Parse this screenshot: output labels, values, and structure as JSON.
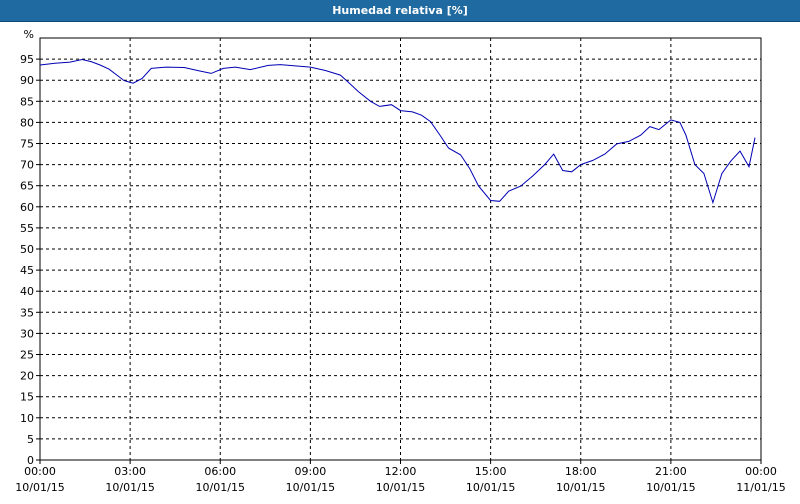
{
  "window": {
    "title": "Humedad relativa [%]"
  },
  "chart_data": {
    "type": "line",
    "title": "Humedad relativa [%]",
    "ylabel": "%",
    "xlabel": "",
    "ylim": [
      0,
      100
    ],
    "y_ticks": [
      0,
      5,
      10,
      15,
      20,
      25,
      30,
      35,
      40,
      45,
      50,
      55,
      60,
      65,
      70,
      75,
      80,
      85,
      90,
      95
    ],
    "xlim": [
      0,
      24
    ],
    "x_ticks": [
      {
        "x": 0,
        "time": "00:00",
        "date": "10/01/15"
      },
      {
        "x": 3,
        "time": "03:00",
        "date": "10/01/15"
      },
      {
        "x": 6,
        "time": "06:00",
        "date": "10/01/15"
      },
      {
        "x": 9,
        "time": "09:00",
        "date": "10/01/15"
      },
      {
        "x": 12,
        "time": "12:00",
        "date": "10/01/15"
      },
      {
        "x": 15,
        "time": "15:00",
        "date": "10/01/15"
      },
      {
        "x": 18,
        "time": "18:00",
        "date": "10/01/15"
      },
      {
        "x": 21,
        "time": "21:00",
        "date": "10/01/15"
      },
      {
        "x": 24,
        "time": "00:00",
        "date": "11/01/15"
      }
    ],
    "grid": true,
    "line_color": "#0000b4",
    "series": [
      {
        "name": "",
        "x": [
          0,
          0.5,
          1.0,
          1.4,
          1.7,
          2.0,
          2.3,
          2.8,
          3.1,
          3.4,
          3.7,
          4.2,
          4.8,
          5.3,
          5.7,
          6.1,
          6.5,
          7.0,
          7.6,
          8.0,
          8.5,
          9.0,
          9.5,
          10.0,
          10.3,
          10.6,
          11.0,
          11.3,
          11.7,
          12.0,
          12.4,
          12.7,
          13.0,
          13.3,
          13.6,
          14.0,
          14.3,
          14.6,
          15.0,
          15.3,
          15.6,
          16.0,
          16.4,
          16.8,
          17.1,
          17.4,
          17.7,
          18.0,
          18.4,
          18.8,
          19.2,
          19.6,
          20.0,
          20.3,
          20.6,
          21.0,
          21.3,
          21.5,
          21.8,
          22.1,
          22.4,
          22.7,
          23.0,
          23.3,
          23.6,
          23.8
        ],
        "values": [
          93.6,
          94.0,
          94.3,
          94.9,
          94.4,
          93.6,
          92.6,
          89.9,
          89.3,
          90.4,
          92.8,
          93.1,
          93.0,
          92.2,
          91.6,
          92.8,
          93.1,
          92.5,
          93.5,
          93.7,
          93.4,
          93.1,
          92.3,
          91.2,
          89.3,
          87.3,
          85.0,
          83.8,
          84.2,
          82.8,
          82.5,
          81.7,
          80.2,
          77.1,
          73.9,
          72.3,
          69.1,
          64.9,
          61.5,
          61.3,
          63.7,
          64.9,
          67.3,
          70.0,
          72.5,
          68.6,
          68.3,
          70.0,
          71.0,
          72.5,
          74.9,
          75.5,
          77.0,
          79.0,
          78.3,
          80.6,
          80.0,
          77.0,
          70.0,
          67.9,
          61.0,
          67.9,
          70.9,
          73.2,
          69.5,
          76.4
        ]
      }
    ]
  }
}
